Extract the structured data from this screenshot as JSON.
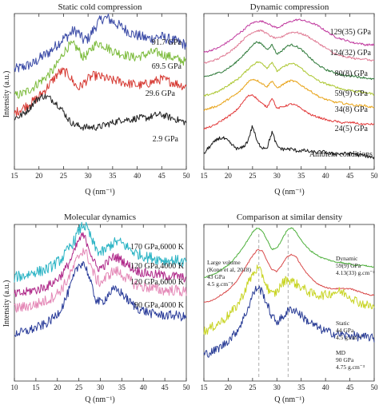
{
  "figure": {
    "shared_ylabel": "Intensity (a.u.)"
  },
  "chart_data": [
    {
      "type": "line",
      "title": "Static cold compression",
      "xlabel": "Q (nm⁻¹)",
      "ylabel": "Intensity (a.u.)",
      "xlim": [
        15,
        50
      ],
      "xticks": [
        15,
        20,
        25,
        30,
        35,
        40,
        45,
        50
      ],
      "yticks_shown": false,
      "x": [
        15,
        16,
        17,
        18,
        19,
        20,
        21,
        22,
        23,
        24,
        25,
        26,
        27,
        28,
        29,
        30,
        31,
        32,
        33,
        34,
        35,
        36,
        37,
        38,
        39,
        40,
        41,
        42,
        43,
        44,
        45,
        46,
        47,
        48,
        49,
        50
      ],
      "series": [
        {
          "name": "91.7 GPa",
          "color": "#3a4aa6",
          "noise": 0.035,
          "values": [
            0.64,
            0.65,
            0.66,
            0.67,
            0.68,
            0.71,
            0.73,
            0.75,
            0.78,
            0.81,
            0.84,
            0.86,
            0.89,
            0.88,
            0.83,
            0.84,
            0.89,
            0.94,
            0.97,
            0.97,
            0.95,
            0.93,
            0.91,
            0.89,
            0.87,
            0.86,
            0.85,
            0.84,
            0.84,
            0.85,
            0.85,
            0.84,
            0.83,
            0.82,
            0.81,
            0.8
          ]
        },
        {
          "name": "69.5 GPa",
          "color": "#7cbb3c",
          "noise": 0.03,
          "values": [
            0.47,
            0.48,
            0.49,
            0.51,
            0.53,
            0.56,
            0.58,
            0.61,
            0.64,
            0.69,
            0.75,
            0.79,
            0.8,
            0.77,
            0.72,
            0.74,
            0.79,
            0.81,
            0.8,
            0.78,
            0.76,
            0.75,
            0.74,
            0.73,
            0.72,
            0.72,
            0.73,
            0.74,
            0.75,
            0.75,
            0.74,
            0.73,
            0.72,
            0.71,
            0.7,
            0.69
          ]
        },
        {
          "name": "29.6 GPa",
          "color": "#d63a33",
          "noise": 0.03,
          "values": [
            0.36,
            0.38,
            0.4,
            0.42,
            0.44,
            0.47,
            0.5,
            0.54,
            0.58,
            0.62,
            0.63,
            0.61,
            0.56,
            0.52,
            0.55,
            0.58,
            0.6,
            0.6,
            0.59,
            0.58,
            0.57,
            0.57,
            0.56,
            0.55,
            0.55,
            0.54,
            0.54,
            0.55,
            0.56,
            0.57,
            0.58,
            0.57,
            0.56,
            0.55,
            0.54,
            0.53
          ]
        },
        {
          "name": "2.9 GPa",
          "color": "#222222",
          "noise": 0.022,
          "values": [
            0.33,
            0.34,
            0.36,
            0.39,
            0.43,
            0.46,
            0.47,
            0.46,
            0.44,
            0.41,
            0.37,
            0.32,
            0.29,
            0.28,
            0.27,
            0.27,
            0.27,
            0.27,
            0.28,
            0.29,
            0.3,
            0.31,
            0.32,
            0.32,
            0.32,
            0.33,
            0.33,
            0.33,
            0.34,
            0.35,
            0.35,
            0.34,
            0.33,
            0.32,
            0.31,
            0.3
          ]
        }
      ]
    },
    {
      "type": "line",
      "title": "Dynamic compression",
      "xlabel": "Q (nm⁻¹)",
      "xlim": [
        15,
        50
      ],
      "xticks": [
        15,
        20,
        25,
        30,
        35,
        40,
        45,
        50
      ],
      "yticks_shown": false,
      "x": [
        15,
        16,
        17,
        18,
        19,
        20,
        21,
        22,
        23,
        24,
        25,
        26,
        27,
        28,
        29,
        30,
        31,
        32,
        33,
        34,
        35,
        36,
        37,
        38,
        39,
        40,
        41,
        42,
        43,
        44,
        45,
        46,
        47,
        48,
        49,
        50
      ],
      "series": [
        {
          "name": "129(35) GPa",
          "color": "#c0399e",
          "noise": 0.006,
          "values": [
            0.75,
            0.76,
            0.77,
            0.78,
            0.8,
            0.82,
            0.84,
            0.87,
            0.89,
            0.92,
            0.94,
            0.95,
            0.95,
            0.94,
            0.92,
            0.91,
            0.92,
            0.94,
            0.95,
            0.96,
            0.96,
            0.95,
            0.94,
            0.93,
            0.91,
            0.89,
            0.87,
            0.85,
            0.84,
            0.83,
            0.82,
            0.81,
            0.81,
            0.8,
            0.8,
            0.8
          ]
        },
        {
          "name": "124(32) GPa",
          "color": "#e07c95",
          "noise": 0.006,
          "values": [
            0.68,
            0.69,
            0.7,
            0.71,
            0.73,
            0.75,
            0.77,
            0.8,
            0.83,
            0.86,
            0.88,
            0.89,
            0.89,
            0.87,
            0.85,
            0.84,
            0.85,
            0.87,
            0.88,
            0.88,
            0.87,
            0.86,
            0.84,
            0.82,
            0.8,
            0.78,
            0.76,
            0.74,
            0.73,
            0.72,
            0.72,
            0.71,
            0.71,
            0.71,
            0.7,
            0.7
          ]
        },
        {
          "name": "80(8) GPa",
          "color": "#2f7a3a",
          "noise": 0.006,
          "values": [
            0.59,
            0.6,
            0.61,
            0.62,
            0.63,
            0.65,
            0.67,
            0.7,
            0.73,
            0.76,
            0.8,
            0.82,
            0.8,
            0.77,
            0.8,
            0.74,
            0.76,
            0.79,
            0.8,
            0.79,
            0.77,
            0.74,
            0.71,
            0.68,
            0.66,
            0.64,
            0.63,
            0.62,
            0.61,
            0.6,
            0.6,
            0.6,
            0.59,
            0.59,
            0.58,
            0.58
          ]
        },
        {
          "name": "59(9) GPa",
          "color": "#aac52c",
          "noise": 0.006,
          "values": [
            0.47,
            0.48,
            0.49,
            0.5,
            0.52,
            0.54,
            0.56,
            0.58,
            0.61,
            0.64,
            0.67,
            0.69,
            0.68,
            0.65,
            0.69,
            0.63,
            0.65,
            0.67,
            0.68,
            0.67,
            0.65,
            0.62,
            0.6,
            0.58,
            0.56,
            0.55,
            0.54,
            0.53,
            0.52,
            0.51,
            0.51,
            0.5,
            0.5,
            0.49,
            0.49,
            0.48
          ]
        },
        {
          "name": "34(8) GPa",
          "color": "#e8a317",
          "noise": 0.006,
          "values": [
            0.38,
            0.39,
            0.4,
            0.41,
            0.43,
            0.45,
            0.47,
            0.49,
            0.52,
            0.56,
            0.58,
            0.57,
            0.55,
            0.53,
            0.57,
            0.52,
            0.54,
            0.56,
            0.57,
            0.56,
            0.54,
            0.52,
            0.5,
            0.48,
            0.46,
            0.45,
            0.44,
            0.43,
            0.43,
            0.42,
            0.42,
            0.41,
            0.41,
            0.41,
            0.4,
            0.4
          ]
        },
        {
          "name": "24(5) GPa",
          "color": "#e23b3b",
          "noise": 0.006,
          "values": [
            0.26,
            0.27,
            0.28,
            0.3,
            0.32,
            0.34,
            0.36,
            0.39,
            0.43,
            0.47,
            0.48,
            0.45,
            0.42,
            0.4,
            0.46,
            0.39,
            0.4,
            0.41,
            0.42,
            0.41,
            0.39,
            0.37,
            0.35,
            0.34,
            0.33,
            0.32,
            0.31,
            0.31,
            0.3,
            0.3,
            0.3,
            0.3,
            0.29,
            0.29,
            0.29,
            0.29
          ]
        },
        {
          "name": "Ambient conditions",
          "color": "#1a1a1a",
          "noise": 0.012,
          "values": [
            0.1,
            0.14,
            0.17,
            0.2,
            0.2,
            0.18,
            0.15,
            0.13,
            0.14,
            0.18,
            0.28,
            0.17,
            0.14,
            0.14,
            0.24,
            0.15,
            0.13,
            0.13,
            0.13,
            0.12,
            0.12,
            0.12,
            0.11,
            0.11,
            0.11,
            0.11,
            0.1,
            0.1,
            0.1,
            0.1,
            0.1,
            0.1,
            0.09,
            0.09,
            0.08,
            0.07
          ]
        }
      ]
    },
    {
      "type": "line",
      "title": "Molecular dynamics",
      "xlabel": "Q (nm⁻¹)",
      "ylabel": "Intensity (a.u.)",
      "xlim": [
        10,
        50
      ],
      "xticks": [
        10,
        15,
        20,
        25,
        30,
        35,
        40,
        45,
        50
      ],
      "yticks_shown": false,
      "x": [
        10,
        11,
        12,
        13,
        14,
        15,
        16,
        17,
        18,
        19,
        20,
        21,
        22,
        23,
        24,
        25,
        26,
        27,
        28,
        29,
        30,
        31,
        32,
        33,
        34,
        35,
        36,
        37,
        38,
        39,
        40,
        41,
        42,
        43,
        44,
        45,
        46,
        47,
        48,
        49,
        50
      ],
      "series": [
        {
          "name": "170 GPa,6000 K",
          "color": "#29b3c4",
          "noise": 0.035,
          "values": [
            0.66,
            0.67,
            0.67,
            0.68,
            0.69,
            0.7,
            0.7,
            0.71,
            0.72,
            0.74,
            0.76,
            0.78,
            0.82,
            0.86,
            0.9,
            0.96,
            1.0,
            0.97,
            0.9,
            0.84,
            0.82,
            0.83,
            0.86,
            0.88,
            0.89,
            0.88,
            0.86,
            0.84,
            0.82,
            0.81,
            0.8,
            0.79,
            0.79,
            0.78,
            0.78,
            0.77,
            0.77,
            0.77,
            0.77,
            0.76,
            0.76
          ]
        },
        {
          "name": "120 GPa,4000 K",
          "color": "#b02a8a",
          "noise": 0.03,
          "values": [
            0.55,
            0.56,
            0.56,
            0.57,
            0.58,
            0.58,
            0.59,
            0.6,
            0.61,
            0.63,
            0.65,
            0.68,
            0.72,
            0.77,
            0.83,
            0.9,
            0.93,
            0.88,
            0.8,
            0.73,
            0.72,
            0.74,
            0.77,
            0.79,
            0.79,
            0.77,
            0.75,
            0.73,
            0.71,
            0.7,
            0.69,
            0.69,
            0.68,
            0.68,
            0.68,
            0.67,
            0.67,
            0.67,
            0.67,
            0.66,
            0.66
          ]
        },
        {
          "name": "120 GPa,6000 K",
          "color": "#e487b6",
          "noise": 0.035,
          "values": [
            0.46,
            0.47,
            0.47,
            0.48,
            0.48,
            0.49,
            0.5,
            0.51,
            0.52,
            0.54,
            0.56,
            0.59,
            0.63,
            0.68,
            0.74,
            0.8,
            0.84,
            0.8,
            0.72,
            0.65,
            0.63,
            0.65,
            0.68,
            0.7,
            0.7,
            0.68,
            0.66,
            0.64,
            0.62,
            0.61,
            0.6,
            0.6,
            0.59,
            0.59,
            0.58,
            0.58,
            0.58,
            0.58,
            0.58,
            0.57,
            0.57
          ]
        },
        {
          "name": "90 GPa,4000 K",
          "color": "#2b3d9a",
          "noise": 0.03,
          "values": [
            0.3,
            0.31,
            0.31,
            0.32,
            0.33,
            0.34,
            0.35,
            0.36,
            0.38,
            0.4,
            0.43,
            0.47,
            0.53,
            0.6,
            0.68,
            0.74,
            0.76,
            0.7,
            0.6,
            0.52,
            0.5,
            0.52,
            0.56,
            0.58,
            0.58,
            0.56,
            0.53,
            0.5,
            0.48,
            0.46,
            0.45,
            0.44,
            0.43,
            0.43,
            0.42,
            0.42,
            0.42,
            0.42,
            0.42,
            0.41,
            0.41
          ]
        }
      ]
    },
    {
      "type": "line",
      "title": "Comparison at similar density",
      "xlabel": "Q (nm⁻¹)",
      "xlim": [
        15,
        50
      ],
      "xticks": [
        15,
        20,
        25,
        30,
        35,
        40,
        45,
        50
      ],
      "yticks_shown": false,
      "reference_lines_x": [
        26.3,
        32.3
      ],
      "x": [
        15,
        16,
        17,
        18,
        19,
        20,
        21,
        22,
        23,
        24,
        25,
        26,
        27,
        28,
        29,
        30,
        31,
        32,
        33,
        34,
        35,
        36,
        37,
        38,
        39,
        40,
        41,
        42,
        43,
        44,
        45,
        46,
        47,
        48,
        49,
        50
      ],
      "series": [
        {
          "name": "Dynamic",
          "color": "#4caf3a",
          "noise": 0.004,
          "values": [
            0.66,
            0.67,
            0.68,
            0.7,
            0.72,
            0.74,
            0.77,
            0.81,
            0.85,
            0.9,
            0.95,
            0.98,
            0.96,
            0.9,
            0.84,
            0.85,
            0.9,
            0.96,
            0.98,
            0.95,
            0.9,
            0.86,
            0.83,
            0.81,
            0.79,
            0.78,
            0.77,
            0.76,
            0.76,
            0.75,
            0.75,
            0.74,
            0.74,
            0.74,
            0.73,
            0.73
          ]
        },
        {
          "name": "Large volume",
          "color": "#d94a4a",
          "noise": 0.004,
          "values": [
            0.5,
            0.51,
            0.52,
            0.54,
            0.56,
            0.58,
            0.61,
            0.65,
            0.7,
            0.75,
            0.8,
            0.84,
            0.83,
            0.77,
            0.71,
            0.7,
            0.74,
            0.79,
            0.81,
            0.79,
            0.74,
            0.69,
            0.66,
            0.63,
            0.61,
            0.6,
            0.59,
            0.59,
            0.59,
            0.59,
            0.59,
            0.58,
            0.57,
            0.56,
            0.55,
            0.55
          ]
        },
        {
          "name": "Static",
          "color": "#c8d424",
          "noise": 0.03,
          "values": [
            0.32,
            0.33,
            0.35,
            0.37,
            0.39,
            0.42,
            0.45,
            0.49,
            0.55,
            0.62,
            0.68,
            0.72,
            0.68,
            0.6,
            0.55,
            0.57,
            0.62,
            0.65,
            0.64,
            0.62,
            0.6,
            0.58,
            0.56,
            0.55,
            0.55,
            0.55,
            0.56,
            0.57,
            0.57,
            0.56,
            0.54,
            0.52,
            0.5,
            0.49,
            0.48,
            0.47
          ]
        },
        {
          "name": "MD",
          "color": "#2a3d96",
          "noise": 0.028,
          "values": [
            0.17,
            0.18,
            0.19,
            0.21,
            0.23,
            0.26,
            0.29,
            0.33,
            0.39,
            0.46,
            0.55,
            0.6,
            0.57,
            0.49,
            0.41,
            0.38,
            0.4,
            0.44,
            0.46,
            0.45,
            0.42,
            0.39,
            0.37,
            0.35,
            0.33,
            0.32,
            0.31,
            0.3,
            0.3,
            0.29,
            0.29,
            0.29,
            0.28,
            0.28,
            0.28,
            0.27
          ]
        }
      ]
    }
  ],
  "labels": {
    "static": [
      "91.7 GPa",
      "69.5 GPa",
      "29.6 GPa",
      "2.9 GPa"
    ],
    "dynamic": [
      "129(35) GPa",
      "124(32) GPa",
      "80(8) GPa",
      "59(9) GPa",
      "34(8) GPa",
      "24(5) GPa",
      "Ambient conditions"
    ],
    "md": [
      "170 GPa,6000 K",
      "120 GPa,4000 K",
      "120 GPa,6000 K",
      "90 GPa,4000 K"
    ],
    "comparison": {
      "large_volume": [
        "Large volume",
        "(Kono et al, 2018)",
        "43 GPa",
        "4.5 g.cm⁻³"
      ],
      "dynamic": [
        "Dynamic",
        "59(9) GPa",
        "4.13(33) g.cm⁻³"
      ],
      "static": [
        "Static",
        "44 GPa",
        "4.5 g.cm⁻³"
      ],
      "md": [
        "MD",
        "90 GPa",
        "4.75 g.cm⁻³"
      ]
    }
  }
}
